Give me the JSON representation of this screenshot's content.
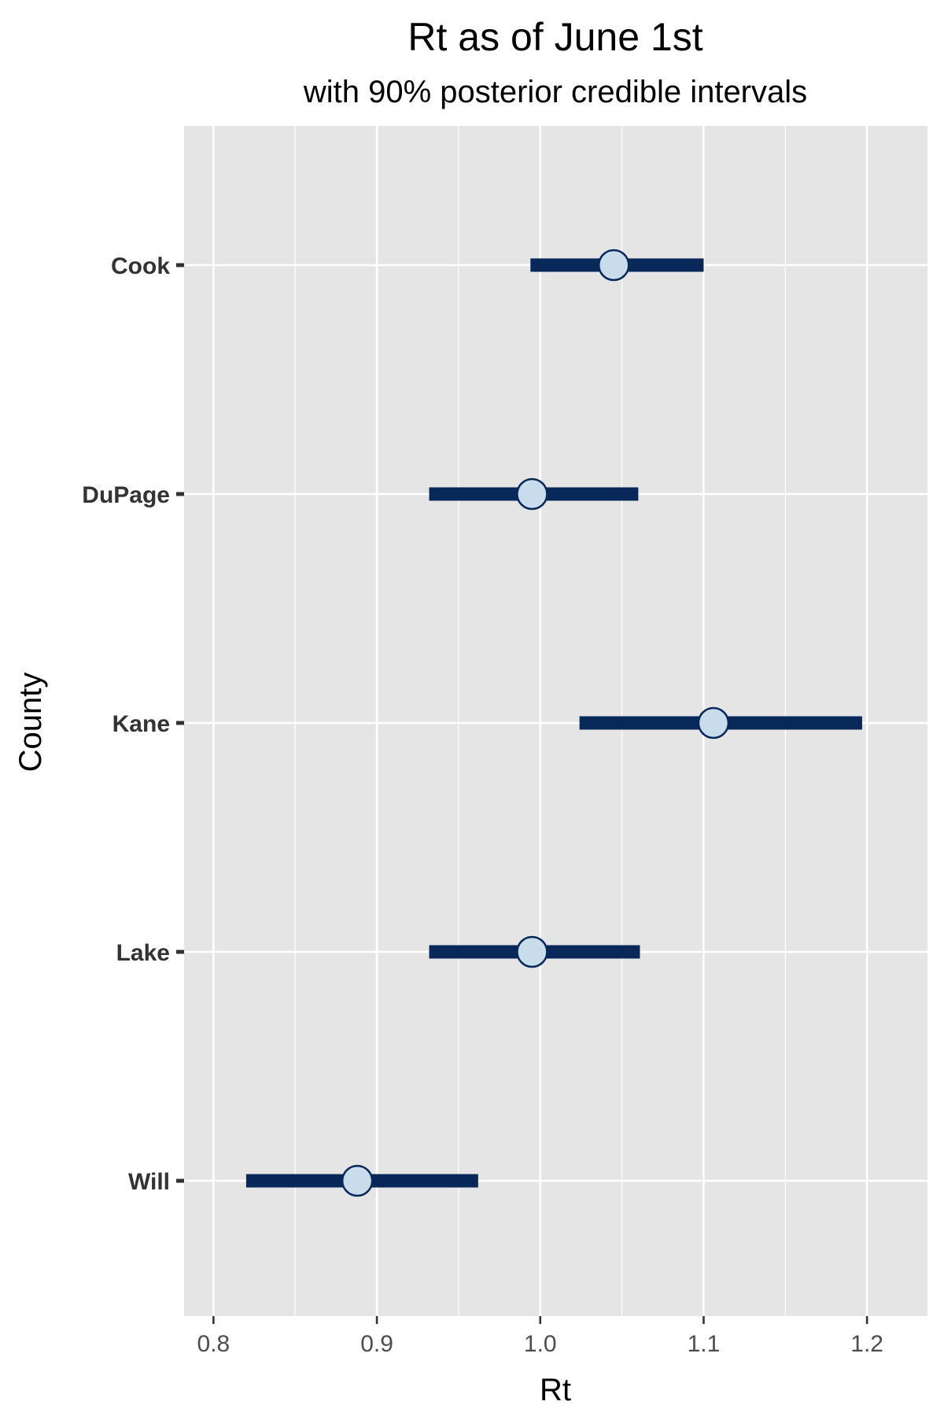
{
  "chart_data": {
    "type": "scatter",
    "title": "Rt as of June 1st",
    "subtitle": "with 90% posterior credible intervals",
    "xlabel": "Rt",
    "ylabel": "County",
    "xlim": [
      0.782,
      1.237
    ],
    "x_ticks": [
      0.8,
      0.9,
      1.0,
      1.1,
      1.2
    ],
    "x_tick_labels": [
      "0.8",
      "0.9",
      "1.0",
      "1.1",
      "1.2"
    ],
    "grid": true,
    "legend": "none",
    "categories": [
      "Cook",
      "DuPage",
      "Kane",
      "Lake",
      "Will"
    ],
    "estimates": [
      1.045,
      0.995,
      1.106,
      0.995,
      0.888
    ],
    "lower": [
      0.994,
      0.932,
      1.024,
      0.932,
      0.82
    ],
    "upper": [
      1.1,
      1.06,
      1.197,
      1.061,
      0.962
    ]
  },
  "colors": {
    "panel_background": "#e5e5e5",
    "grid": "#ffffff",
    "interval": "#08285a",
    "point_fill": "#c9dceb",
    "point_stroke": "#08285a",
    "axis_tick": "#333333"
  }
}
